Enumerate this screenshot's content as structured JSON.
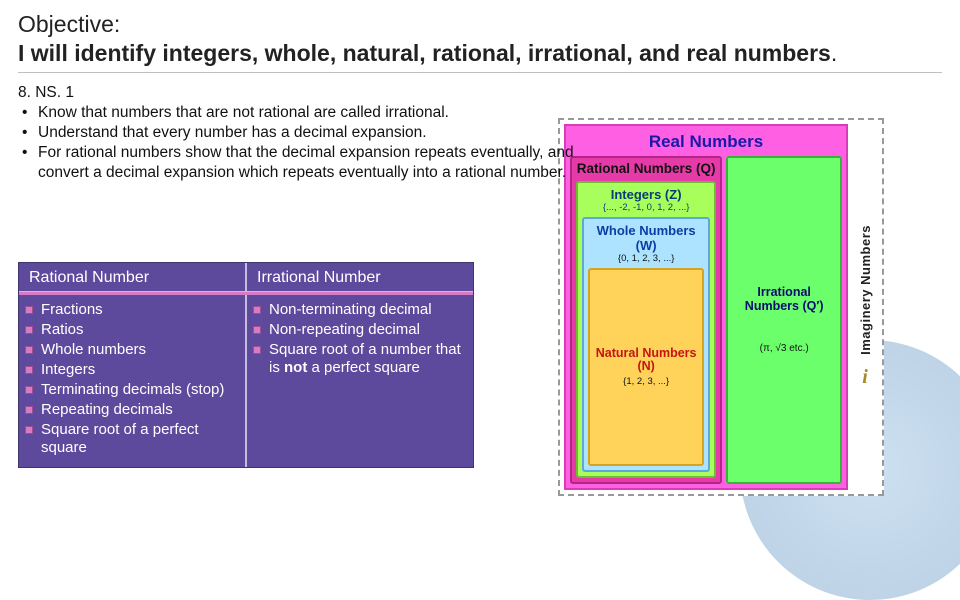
{
  "objective": {
    "title": "Objective:",
    "body_main": "I will identify integers, whole, natural, rational, irrational, and real numbers",
    "body_period": "."
  },
  "standard": {
    "code": "8. NS. 1",
    "bullets": [
      "Know that numbers that are not rational are called irrational.",
      "Understand that every number has a decimal expansion.",
      "For rational numbers show that the decimal expansion repeats eventually, and convert a decimal expansion which repeats eventually into a rational number."
    ]
  },
  "comparison_table": {
    "bg_color": "#5d4a9c",
    "accent_color": "#d67cc4",
    "headers": [
      "Rational Number",
      "Irrational Number"
    ],
    "rational_items": [
      "Fractions",
      "Ratios",
      "Whole numbers",
      "Integers",
      "Terminating decimals (stop)",
      "Repeating decimals",
      "Square root of a perfect square"
    ],
    "irrational_items_plain": [
      "Non-terminating decimal",
      "Non-repeating decimal"
    ],
    "irrational_item_rich_pre": "Square root of a number that is ",
    "irrational_item_rich_bold": "not",
    "irrational_item_rich_post": " a perfect square"
  },
  "diagram": {
    "real": {
      "label": "Real Numbers",
      "bg": "#ff5fe2",
      "title_color": "#1a1aa8"
    },
    "rational": {
      "label": "Rational Numbers (Q)",
      "bg": "#e63aa8"
    },
    "integers": {
      "label": "Integers (Z)",
      "sub": "{..., -2, -1, 0, 1, 2, ...}",
      "bg": "#a8ff5c"
    },
    "whole": {
      "label": "Whole Numbers (W)",
      "sub": "{0, 1, 2, 3, ...}",
      "bg": "#aee3ff"
    },
    "natural": {
      "label": "Natural Numbers (N)",
      "sub": "{1, 2, 3, ...}",
      "bg": "#ffd35a"
    },
    "irrational": {
      "label": "Irrational Numbers (Q′)",
      "sub": "(π, √3 etc.)",
      "bg": "#6cff6c"
    },
    "imaginary": {
      "label": "Imaginery Numbers",
      "symbol": "i"
    }
  }
}
